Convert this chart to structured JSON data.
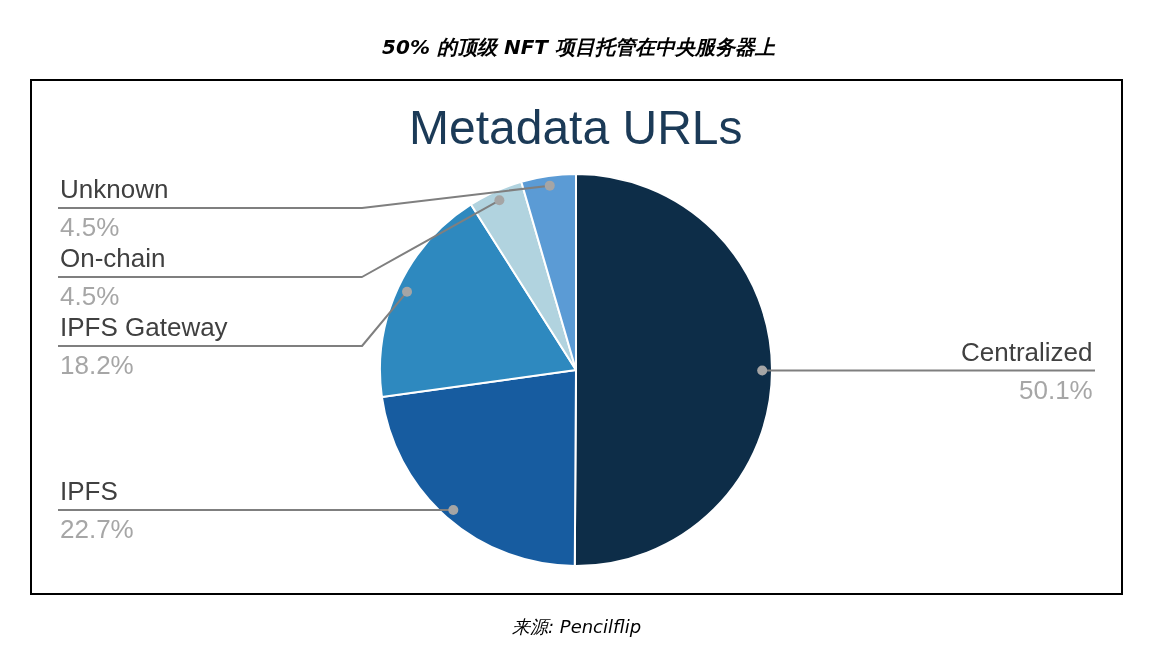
{
  "chart_data": {
    "type": "pie",
    "title": "50% 的顶级 NFT 项目托管在中央服务器上",
    "subtitle": "Metadata URLs",
    "categories": [
      "Centralized",
      "IPFS",
      "IPFS Gateway",
      "On-chain",
      "Unknown"
    ],
    "values": [
      50.1,
      22.7,
      18.2,
      4.5,
      4.5
    ],
    "value_labels": [
      "50.1%",
      "22.7%",
      "18.2%",
      "4.5%",
      "4.5%"
    ],
    "colors": [
      "#0d2d48",
      "#175ca0",
      "#2e89bf",
      "#b1d3df",
      "#5b9bd5"
    ],
    "annotations": [
      "来源: Pencilflip"
    ]
  }
}
